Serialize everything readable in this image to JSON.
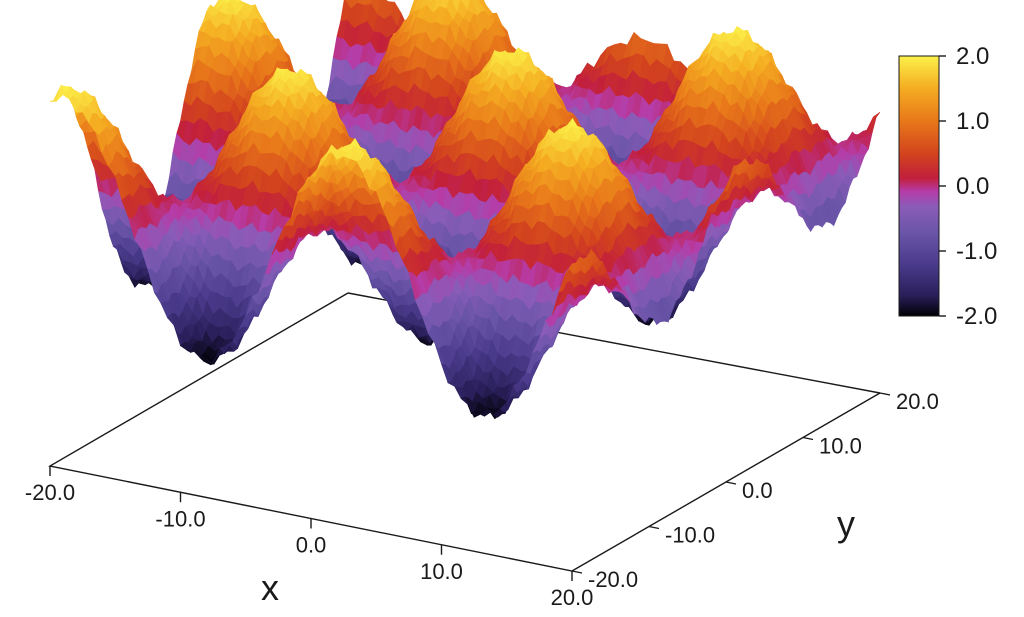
{
  "chart_data": {
    "type": "surface",
    "title": "",
    "xlabel": "x",
    "ylabel": "y",
    "xlim": [
      -20,
      20
    ],
    "ylim": [
      -20,
      20
    ],
    "zlim": [
      -2,
      2
    ],
    "x_ticks": [
      "-20.0",
      "-10.0",
      "0.0",
      "10.0",
      "20.0"
    ],
    "y_ticks": [
      "-20.0",
      "-10.0",
      "0.0",
      "10.0",
      "20.0"
    ],
    "colorbar": {
      "ticks": [
        "2.0",
        "1.0",
        "0.0",
        "-1.0",
        "-2.0"
      ],
      "range": [
        -2,
        2
      ],
      "colormap": [
        "#000004",
        "#3b2b7a",
        "#6a53a8",
        "#8f6bc0",
        "#b03fb0",
        "#c01f4a",
        "#d94a1e",
        "#ef8a1c",
        "#f8c22a",
        "#fcfd6a"
      ]
    },
    "surface": {
      "description_function": "z = sin(x/3.5) * sin(y/3.5) * 1.9 + noise",
      "peaks_visible": 10
    },
    "grid": false,
    "legend": "right"
  }
}
